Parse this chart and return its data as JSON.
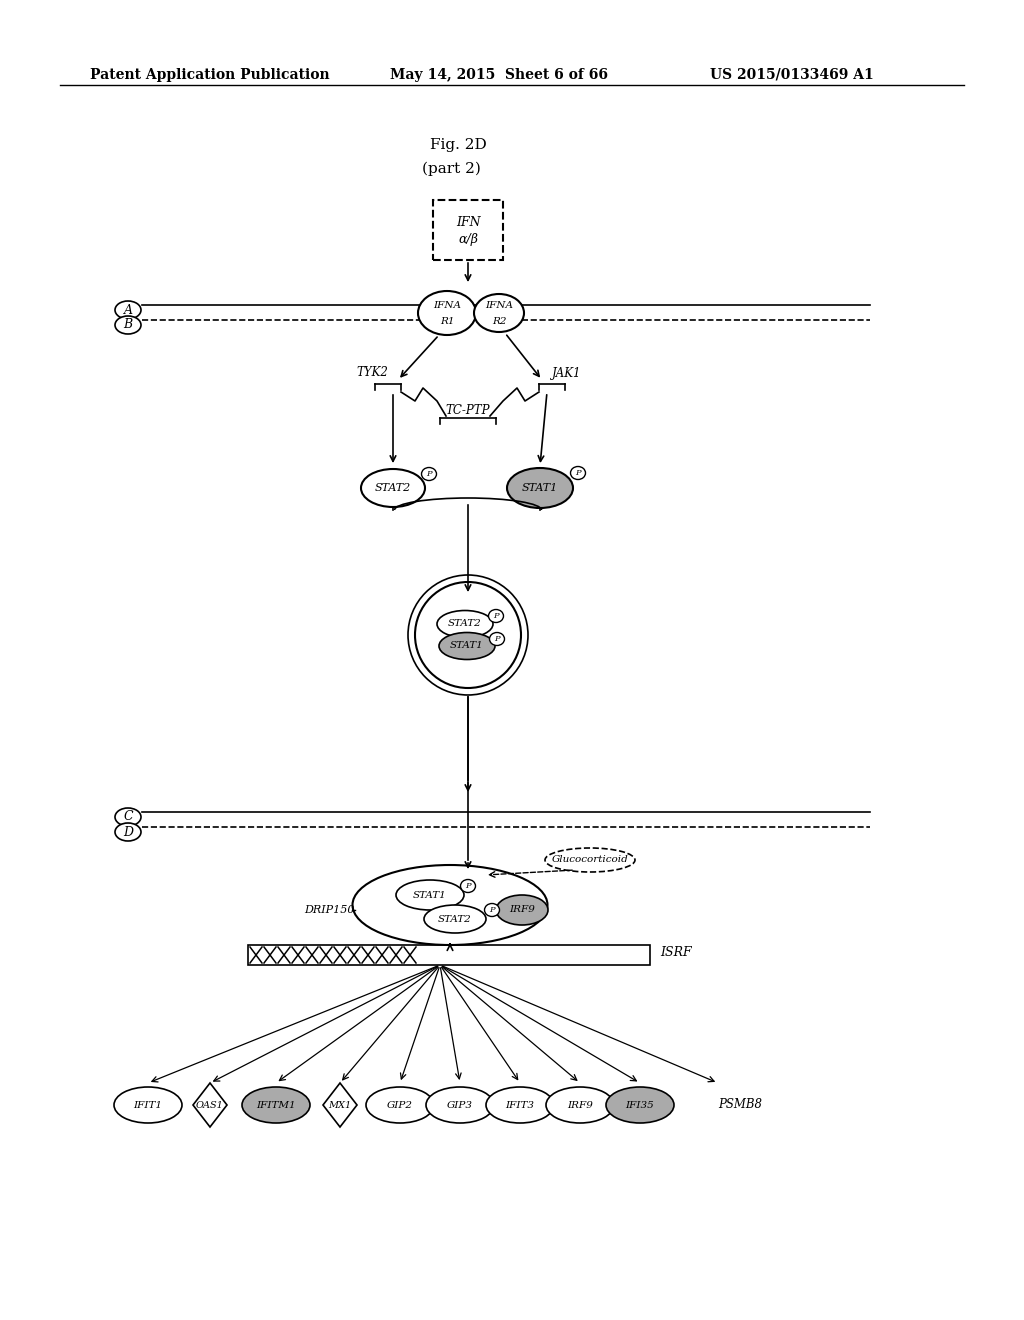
{
  "header_left": "Patent Application Publication",
  "header_mid": "May 14, 2015  Sheet 6 of 66",
  "header_right": "US 2015/0133469 A1",
  "fig_label": "Fig. 2D",
  "fig_sublabel": "(part 2)",
  "bg_color": "#ffffff",
  "line_color": "#000000",
  "gray_fill": "#aaaaaa",
  "white_fill": "#ffffff"
}
